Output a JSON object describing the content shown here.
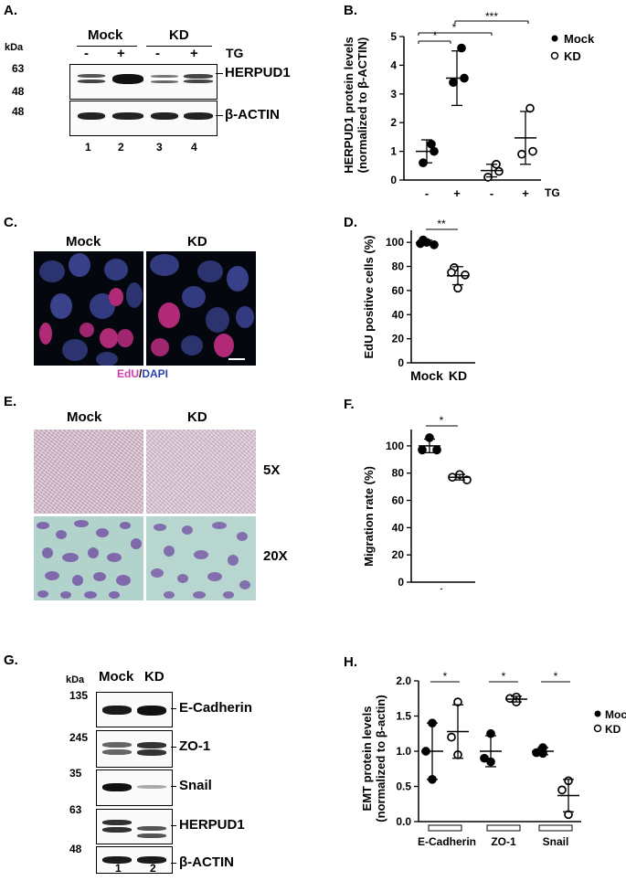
{
  "panels": {
    "A": {
      "letter": "A.",
      "unit": "kDa",
      "groups": [
        "Mock",
        "KD"
      ],
      "treatment": "TG",
      "signs": [
        "-",
        "+",
        "-",
        "+"
      ],
      "markers_top": [
        "63",
        "48"
      ],
      "markers_bottom": [
        "48"
      ],
      "bands": [
        "HERPUD1",
        "β-ACTIN"
      ],
      "lanes": [
        "1",
        "2",
        "3",
        "4"
      ],
      "herpud1_intensity": [
        0.45,
        1.0,
        0.3,
        0.55
      ],
      "actin_intensity": [
        0.9,
        0.9,
        0.9,
        0.9
      ]
    },
    "B": {
      "letter": "B.",
      "ylabel_line1": "HERPUD1 protein levels",
      "ylabel_line2": "(normalized to β-ACTIN)",
      "yticks": [
        "0",
        "1",
        "2",
        "3",
        "4",
        "5"
      ],
      "xticks": [
        "-",
        "+",
        "-",
        "+"
      ],
      "xsuffix": "TG",
      "legend": [
        "Mock",
        "KD"
      ],
      "sig": [
        "*",
        "*",
        "***"
      ]
    },
    "C": {
      "letter": "C.",
      "labels": [
        "Mock",
        "KD"
      ],
      "caption_edu": "EdU",
      "caption_sep": "/",
      "caption_dapi": "DAPI"
    },
    "D": {
      "letter": "D.",
      "ylabel": "EdU positive cells (%)",
      "yticks": [
        "0",
        "20",
        "40",
        "60",
        "80",
        "100"
      ],
      "xticks": [
        "Mock",
        "KD"
      ],
      "sig": "**"
    },
    "E": {
      "letter": "E.",
      "labels": [
        "Mock",
        "KD"
      ],
      "mags": [
        "5X",
        "20X"
      ]
    },
    "F": {
      "letter": "F.",
      "ylabel": "Migration rate (%)",
      "yticks": [
        "0",
        "20",
        "40",
        "60",
        "80",
        "100"
      ],
      "xticks": [
        "Mock",
        "KD"
      ],
      "sig": "*"
    },
    "G": {
      "letter": "G.",
      "unit": "kDa",
      "lanes_header": [
        "Mock",
        "KD"
      ],
      "markers": [
        "135",
        "245",
        "35",
        "63",
        "48"
      ],
      "bands": [
        "E-Cadherin",
        "ZO-1",
        "Snail",
        "HERPUD1",
        "β-ACTIN"
      ],
      "lanes": [
        "1",
        "2"
      ]
    },
    "H": {
      "letter": "H.",
      "ylabel_line1": "EMT protein levels",
      "ylabel_line2": "(normalized to β-actin)",
      "yticks": [
        "0.0",
        "0.5",
        "1.0",
        "1.5",
        "2.0"
      ],
      "xticks": [
        "E-Cadherin",
        "ZO-1",
        "Snail"
      ],
      "legend": [
        "Mock",
        "KD"
      ],
      "sig": [
        "*",
        "*",
        "*"
      ]
    }
  },
  "chart_data": [
    {
      "id": "B",
      "type": "scatter",
      "ylabel": "HERPUD1 protein levels (normalized to β-ACTIN)",
      "ylim": [
        0,
        5
      ],
      "categories": [
        "Mock -TG",
        "Mock +TG",
        "KD -TG",
        "KD +TG"
      ],
      "series": [
        {
          "name": "Mock",
          "marker": "filled",
          "groups": [
            {
              "category": "Mock -TG",
              "points": [
                1.25,
                1.0,
                0.6
              ],
              "mean": 1.0,
              "sd": 0.4
            },
            {
              "category": "Mock +TG",
              "points": [
                4.6,
                3.55,
                3.4
              ],
              "mean": 3.55,
              "sd": 0.95
            }
          ]
        },
        {
          "name": "KD",
          "marker": "open",
          "groups": [
            {
              "category": "KD -TG",
              "points": [
                0.55,
                0.3,
                0.1
              ],
              "mean": 0.33,
              "sd": 0.22
            },
            {
              "category": "KD +TG",
              "points": [
                2.5,
                1.0,
                0.9
              ],
              "mean": 1.47,
              "sd": 0.92
            }
          ]
        }
      ]
    },
    {
      "id": "D",
      "type": "scatter",
      "ylabel": "EdU positive cells (%)",
      "ylim": [
        0,
        110
      ],
      "categories": [
        "Mock",
        "KD"
      ],
      "groups": [
        {
          "category": "Mock",
          "marker": "filled",
          "points": [
            102,
            99,
            98,
            100
          ],
          "mean": 99.8,
          "sd": 2
        },
        {
          "category": "KD",
          "marker": "open",
          "points": [
            79,
            75,
            73,
            62
          ],
          "mean": 72.3,
          "sd": 7.5
        }
      ]
    },
    {
      "id": "F",
      "type": "scatter",
      "ylabel": "Migration rate (%)",
      "ylim": [
        0,
        112
      ],
      "categories": [
        "Mock",
        "KD"
      ],
      "groups": [
        {
          "category": "Mock",
          "marker": "filled",
          "points": [
            106,
            97,
            97
          ],
          "mean": 100,
          "sd": 5
        },
        {
          "category": "KD",
          "marker": "open",
          "points": [
            79,
            77,
            75
          ],
          "mean": 77,
          "sd": 2
        }
      ]
    },
    {
      "id": "H",
      "type": "scatter",
      "ylabel": "EMT protein levels (normalized to β-actin)",
      "ylim": [
        0,
        2.0
      ],
      "categories": [
        "E-Cadherin",
        "ZO-1",
        "Snail"
      ],
      "series": [
        {
          "name": "Mock",
          "marker": "filled",
          "groups": [
            {
              "category": "E-Cadherin",
              "points": [
                1.4,
                1.0,
                0.6
              ],
              "mean": 1.0,
              "sd": 0.4
            },
            {
              "category": "ZO-1",
              "points": [
                1.25,
                0.9,
                0.85
              ],
              "mean": 1.0,
              "sd": 0.22
            },
            {
              "category": "Snail",
              "points": [
                1.05,
                0.98,
                0.97
              ],
              "mean": 1.0,
              "sd": 0.05
            }
          ]
        },
        {
          "name": "KD",
          "marker": "open",
          "groups": [
            {
              "category": "E-Cadherin",
              "points": [
                1.7,
                1.2,
                0.95
              ],
              "mean": 1.28,
              "sd": 0.38
            },
            {
              "category": "ZO-1",
              "points": [
                1.77,
                1.75,
                1.7
              ],
              "mean": 1.74,
              "sd": 0.04
            },
            {
              "category": "Snail",
              "points": [
                0.58,
                0.45,
                0.1
              ],
              "mean": 0.37,
              "sd": 0.23
            }
          ]
        }
      ]
    }
  ]
}
